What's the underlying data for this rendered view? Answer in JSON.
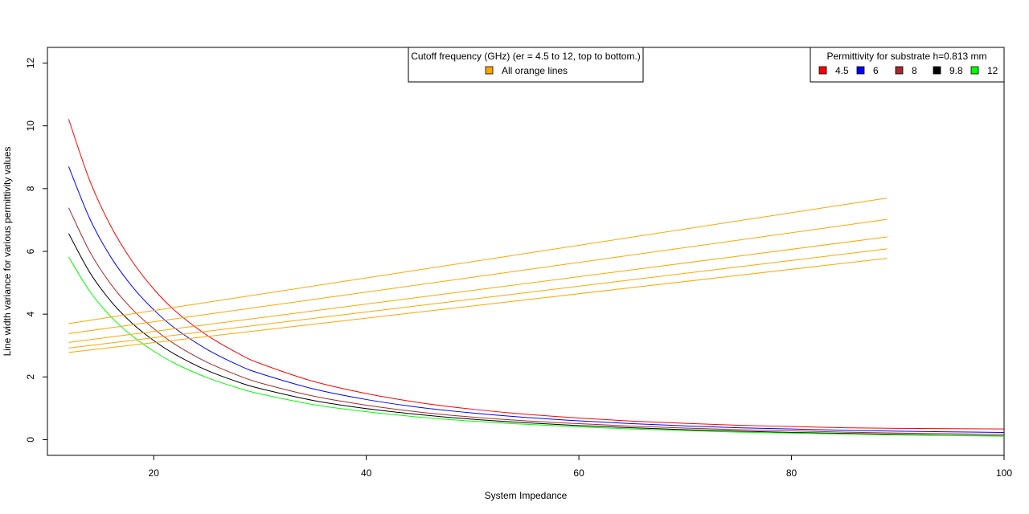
{
  "chart_data": {
    "type": "line",
    "xlabel": "System Impedance",
    "ylabel": "Line width variance for various permittivity values",
    "xlim": [
      10,
      100
    ],
    "ylim": [
      -0.5,
      12.5
    ],
    "x_ticks": [
      20,
      40,
      60,
      80,
      100
    ],
    "y_ticks": [
      0,
      2,
      4,
      6,
      8,
      10,
      12
    ],
    "grid": false,
    "series": [
      {
        "name": "4.5",
        "color": "#ff0000",
        "x": [
          12,
          14,
          16,
          18,
          20,
          22,
          25,
          28,
          30,
          35,
          40,
          45,
          50,
          55,
          60,
          65,
          70,
          75,
          80,
          85,
          90,
          95,
          100
        ],
        "y": [
          10.21,
          8.24,
          6.78,
          5.67,
          4.8,
          4.11,
          3.33,
          2.74,
          2.43,
          1.86,
          1.47,
          1.18,
          0.97,
          0.81,
          0.69,
          0.59,
          0.52,
          0.46,
          0.42,
          0.38,
          0.36,
          0.35,
          0.34
        ]
      },
      {
        "name": "6",
        "color": "#0000ff",
        "x": [
          12,
          14,
          16,
          18,
          20,
          22,
          25,
          28,
          30,
          35,
          40,
          45,
          50,
          55,
          60,
          65,
          70,
          75,
          80,
          85,
          90,
          95,
          100
        ],
        "y": [
          8.7,
          7.03,
          5.8,
          4.87,
          4.14,
          3.55,
          2.88,
          2.37,
          2.11,
          1.62,
          1.28,
          1.03,
          0.85,
          0.71,
          0.6,
          0.51,
          0.44,
          0.38,
          0.34,
          0.3,
          0.27,
          0.25,
          0.23
        ]
      },
      {
        "name": "8",
        "color": "#a52a2a",
        "x": [
          12,
          14,
          16,
          18,
          20,
          22,
          25,
          28,
          30,
          35,
          40,
          45,
          50,
          55,
          60,
          65,
          70,
          75,
          80,
          85,
          90,
          95,
          100
        ],
        "y": [
          7.39,
          5.98,
          4.94,
          4.15,
          3.54,
          3.04,
          2.47,
          2.04,
          1.81,
          1.39,
          1.1,
          0.88,
          0.72,
          0.6,
          0.51,
          0.43,
          0.37,
          0.32,
          0.28,
          0.24,
          0.21,
          0.19,
          0.17
        ]
      },
      {
        "name": "9.8",
        "color": "#000000",
        "x": [
          12,
          14,
          16,
          18,
          20,
          22,
          25,
          28,
          30,
          35,
          40,
          45,
          50,
          55,
          60,
          65,
          70,
          75,
          80,
          85,
          90,
          95,
          100
        ],
        "y": [
          6.57,
          5.32,
          4.4,
          3.7,
          3.16,
          2.72,
          2.21,
          1.83,
          1.63,
          1.25,
          0.99,
          0.8,
          0.65,
          0.54,
          0.45,
          0.38,
          0.32,
          0.27,
          0.23,
          0.2,
          0.17,
          0.14,
          0.12
        ]
      },
      {
        "name": "12",
        "color": "#00ff00",
        "x": [
          12,
          14,
          16,
          18,
          20,
          22,
          25,
          28,
          30,
          35,
          40,
          45,
          50,
          55,
          60,
          65,
          70,
          75,
          80,
          85,
          90,
          95,
          100
        ],
        "y": [
          5.82,
          4.72,
          3.91,
          3.3,
          2.82,
          2.43,
          1.98,
          1.64,
          1.46,
          1.12,
          0.89,
          0.72,
          0.59,
          0.49,
          0.41,
          0.34,
          0.29,
          0.24,
          0.21,
          0.18,
          0.15,
          0.13,
          0.11
        ]
      }
    ],
    "cutoff_lines": {
      "color": "#ffa500",
      "x": [
        12,
        89
      ],
      "lines": [
        {
          "y": [
            3.7,
            7.7
          ]
        },
        {
          "y": [
            3.38,
            7.02
          ]
        },
        {
          "y": [
            3.1,
            6.46
          ]
        },
        {
          "y": [
            2.92,
            6.08
          ]
        },
        {
          "y": [
            2.78,
            5.78
          ]
        }
      ]
    },
    "legend_cutoff": {
      "title": "Cutoff frequency (GHz) (er = 4.5 to 12, top to bottom.)",
      "label": "All orange lines",
      "color": "#ffa500",
      "position": "top-center"
    },
    "legend_permittivity": {
      "title": "Permittivity for substrate h=0.813 mm",
      "position": "top-right",
      "entries": [
        {
          "label": "4.5",
          "color": "#ff0000"
        },
        {
          "label": "6",
          "color": "#0000ff"
        },
        {
          "label": "8",
          "color": "#a52a2a"
        },
        {
          "label": "9.8",
          "color": "#000000"
        },
        {
          "label": "12",
          "color": "#00ff00"
        }
      ]
    }
  }
}
